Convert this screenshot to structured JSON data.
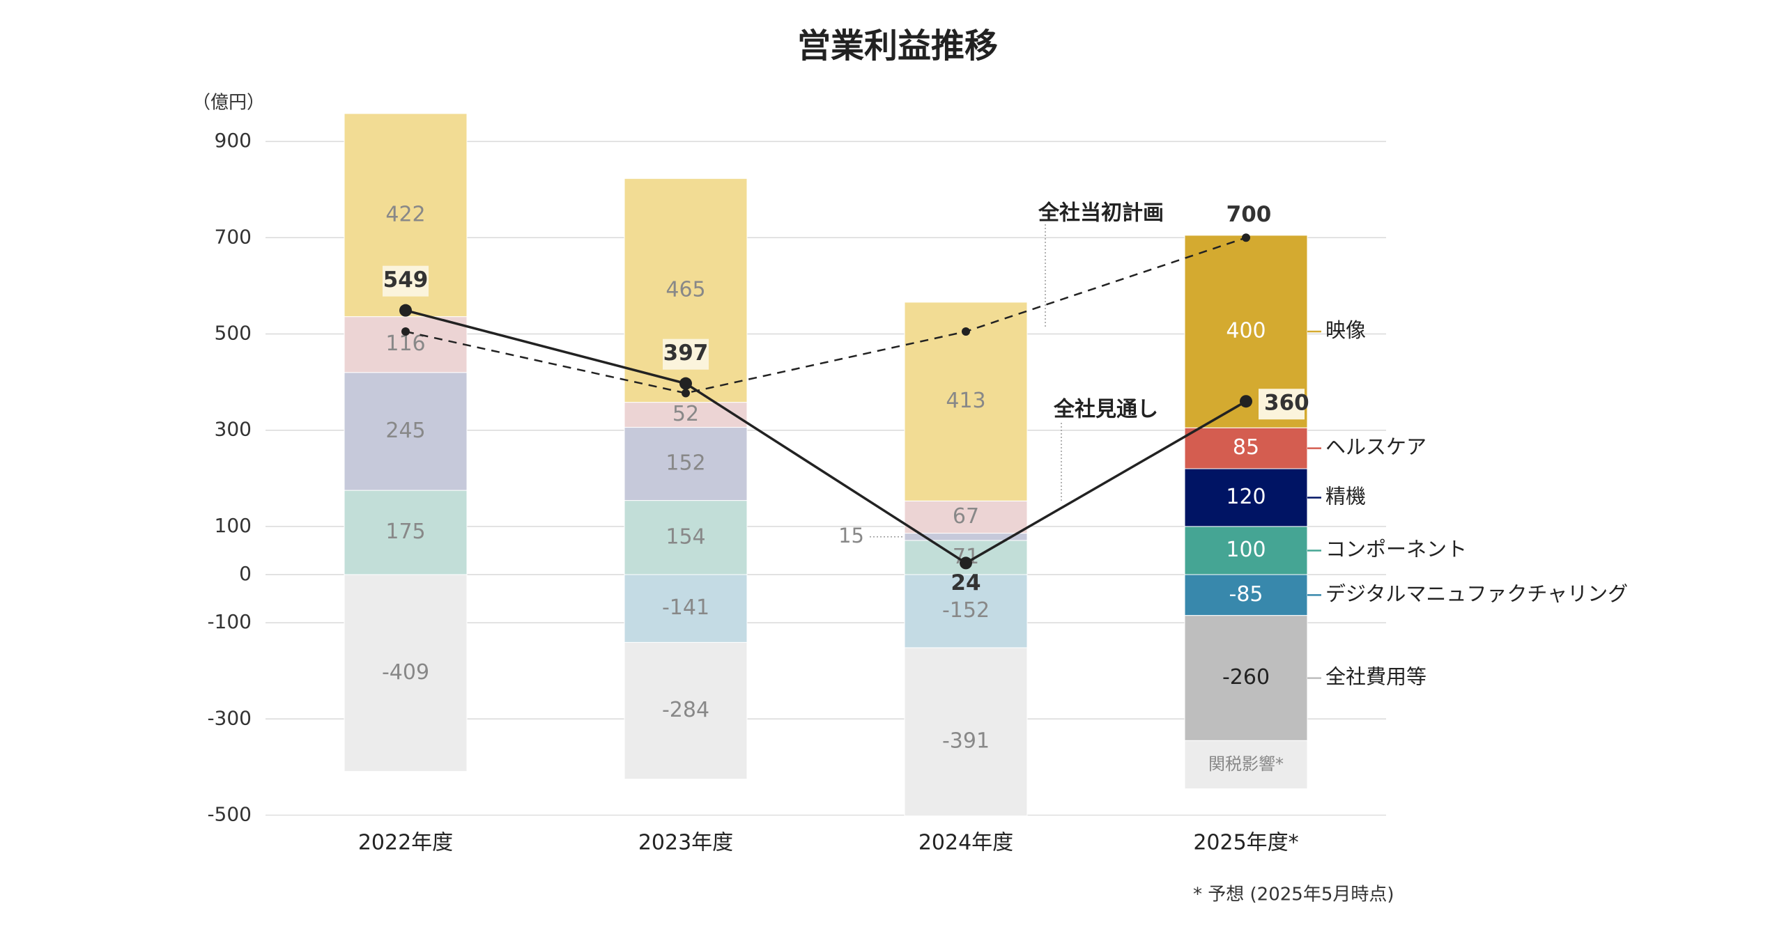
{
  "chart_data": {
    "type": "bar",
    "title": "営業利益推移",
    "y_unit": "（億円）",
    "footnote": "* 予想 (2025年5月時点)",
    "categories": [
      "2022年度",
      "2023年度",
      "2024年度",
      "2025年度*"
    ],
    "ylim": [
      -500,
      1000
    ],
    "yticks": [
      900,
      700,
      500,
      300,
      100,
      0,
      -100,
      -300,
      -500
    ],
    "grid": true,
    "series": [
      {
        "name": "コンポーネント",
        "colors": [
          "#c2ded8",
          "#c2ded8",
          "#c2ded8",
          "#45a594"
        ],
        "values": [
          175,
          154,
          71,
          100
        ]
      },
      {
        "name": "精機",
        "colors": [
          "#c6c9da",
          "#c6c9da",
          "#c6c9da",
          "#001464"
        ],
        "values": [
          245,
          152,
          15,
          120
        ]
      },
      {
        "name": "ヘルスケア",
        "colors": [
          "#ecd4d4",
          "#ecd4d4",
          "#ecd4d4",
          "#d45d50"
        ],
        "values": [
          116,
          52,
          67,
          85
        ]
      },
      {
        "name": "映像",
        "colors": [
          "#f2dc94",
          "#f2dc94",
          "#f2dc94",
          "#d4aa30"
        ],
        "values": [
          422,
          465,
          413,
          400
        ]
      },
      {
        "name": "デジタルマニュファクチャリング",
        "colors": [
          "#c4dbe4",
          "#c4dbe4",
          "#c4dbe4",
          "#3888ac"
        ],
        "values": [
          null,
          -141,
          -152,
          -85
        ]
      },
      {
        "name": "全社費用等",
        "colors": [
          "#ececec",
          "#ececec",
          "#ececec",
          "#bebebe"
        ],
        "values": [
          -409,
          -284,
          -391,
          -260
        ]
      },
      {
        "name": "関税影響*",
        "colors": [
          null,
          null,
          null,
          "#ececec"
        ],
        "values": [
          null,
          null,
          null,
          -100
        ],
        "show_value": false
      }
    ],
    "lines": [
      {
        "name": "全社見通し",
        "color": "#222222",
        "dashed": false,
        "values": [
          549,
          397,
          24,
          360
        ]
      },
      {
        "name": "全社当初計画",
        "color": "#222222",
        "dashed": true,
        "values": [
          505,
          377,
          505,
          700
        ],
        "value_labels": [
          null,
          null,
          null,
          "700"
        ]
      }
    ]
  }
}
